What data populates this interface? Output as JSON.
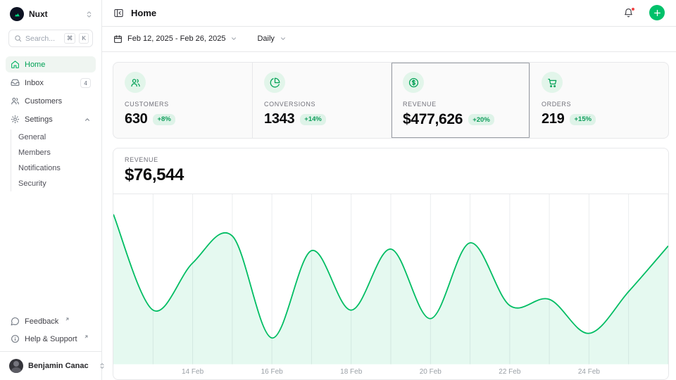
{
  "sidebar": {
    "workspace": {
      "name": "Nuxt"
    },
    "search": {
      "placeholder": "Search...",
      "kbd": [
        "⌘",
        "K"
      ]
    },
    "nav": [
      {
        "label": "Home",
        "icon": "home-icon",
        "active": true
      },
      {
        "label": "Inbox",
        "icon": "inbox-icon",
        "badge": "4"
      },
      {
        "label": "Customers",
        "icon": "users-icon"
      },
      {
        "label": "Settings",
        "icon": "gear-icon",
        "expanded": true,
        "children": [
          "General",
          "Members",
          "Notifications",
          "Security"
        ]
      }
    ],
    "footer": [
      {
        "label": "Feedback",
        "icon": "chat-bubble-icon",
        "external": true
      },
      {
        "label": "Help & Support",
        "icon": "info-circle-icon",
        "external": true
      }
    ],
    "user": {
      "name": "Benjamin Canac"
    }
  },
  "header": {
    "title": "Home"
  },
  "toolbar": {
    "date_range": "Feb 12, 2025 - Feb 26, 2025",
    "granularity": "Daily"
  },
  "stats": [
    {
      "label": "CUSTOMERS",
      "value": "630",
      "delta": "+8%",
      "icon": "users-icon"
    },
    {
      "label": "CONVERSIONS",
      "value": "1343",
      "delta": "+14%",
      "icon": "pie-chart-icon"
    },
    {
      "label": "REVENUE",
      "value": "$477,626",
      "delta": "+20%",
      "icon": "dollar-circle-icon",
      "selected": true
    },
    {
      "label": "ORDERS",
      "value": "219",
      "delta": "+15%",
      "icon": "cart-icon"
    }
  ],
  "chart_card": {
    "label": "REVENUE",
    "value": "$76,544"
  },
  "chart_data": {
    "type": "area",
    "title": "Revenue (daily)",
    "x": [
      "Feb 12",
      "Feb 13",
      "Feb 14",
      "Feb 15",
      "Feb 16",
      "Feb 17",
      "Feb 18",
      "Feb 19",
      "Feb 20",
      "Feb 21",
      "Feb 22",
      "Feb 23",
      "Feb 24",
      "Feb 25",
      "Feb 26"
    ],
    "values": [
      97000,
      35000,
      65500,
      83000,
      17000,
      73500,
      35000,
      74500,
      29500,
      78500,
      38000,
      42000,
      20000,
      47000,
      76544
    ],
    "ylim": [
      0,
      110000
    ],
    "xlabel": "",
    "ylabel": "",
    "tick_indices": [
      2,
      4,
      6,
      8,
      10,
      12
    ],
    "tick_labels": [
      "14 Feb",
      "16 Feb",
      "18 Feb",
      "20 Feb",
      "22 Feb",
      "24 Feb"
    ],
    "grid": "vertical",
    "legend": "none",
    "line_color": "#00bd63",
    "fill_color": "rgba(0,193,106,0.10)",
    "grid_color": "#ebedef"
  },
  "colors": {
    "accent": "#00c16a",
    "accent_text": "#00a155",
    "badge_bg": "#def3e8",
    "notification_dot": "#ef4444",
    "border": "#e7e8ea",
    "logo_bg": "#0c1222",
    "logo_green": "#00dc82"
  }
}
